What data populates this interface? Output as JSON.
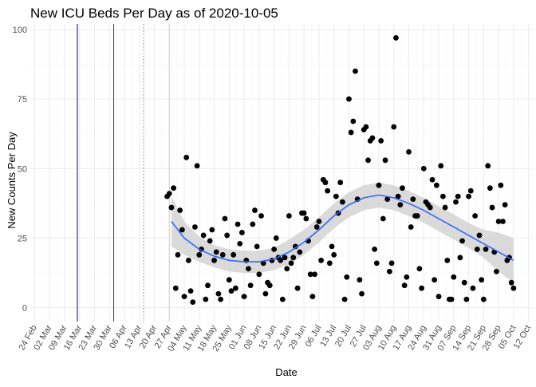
{
  "chart_data": {
    "type": "scatter",
    "title": "New ICU Beds Per Day as of 2020-10-05",
    "xlabel": "Date",
    "ylabel": "New Counts Per Day",
    "ylim": [
      -5,
      102
    ],
    "y_ticks": [
      0,
      25,
      50,
      75,
      100
    ],
    "x_range_days": [
      -2,
      233
    ],
    "x_ticks": [
      {
        "day": 0,
        "label": "24 Feb"
      },
      {
        "day": 7,
        "label": "02 Mar"
      },
      {
        "day": 14,
        "label": "09 Mar"
      },
      {
        "day": 21,
        "label": "16 Mar"
      },
      {
        "day": 28,
        "label": "23 Mar"
      },
      {
        "day": 35,
        "label": "30 Mar"
      },
      {
        "day": 42,
        "label": "06 Apr"
      },
      {
        "day": 49,
        "label": "13 Apr"
      },
      {
        "day": 56,
        "label": "20 Apr"
      },
      {
        "day": 63,
        "label": "27 Apr"
      },
      {
        "day": 70,
        "label": "04 May"
      },
      {
        "day": 77,
        "label": "11 May"
      },
      {
        "day": 84,
        "label": "18 May"
      },
      {
        "day": 91,
        "label": "25 May"
      },
      {
        "day": 98,
        "label": "01 Jun"
      },
      {
        "day": 105,
        "label": "08 Jun"
      },
      {
        "day": 112,
        "label": "15 Jun"
      },
      {
        "day": 119,
        "label": "22 Jun"
      },
      {
        "day": 126,
        "label": "29 Jun"
      },
      {
        "day": 133,
        "label": "06 Jul"
      },
      {
        "day": 140,
        "label": "13 Jul"
      },
      {
        "day": 147,
        "label": "20 Jul"
      },
      {
        "day": 154,
        "label": "27 Jul"
      },
      {
        "day": 161,
        "label": "03 Aug"
      },
      {
        "day": 168,
        "label": "10 Aug"
      },
      {
        "day": 175,
        "label": "17 Aug"
      },
      {
        "day": 182,
        "label": "24 Aug"
      },
      {
        "day": 189,
        "label": "31 Aug"
      },
      {
        "day": 196,
        "label": "07 Sep"
      },
      {
        "day": 203,
        "label": "14 Sep"
      },
      {
        "day": 210,
        "label": "21 Sep"
      },
      {
        "day": 217,
        "label": "28 Sep"
      },
      {
        "day": 224,
        "label": "05 Oct"
      },
      {
        "day": 231,
        "label": "12 Oct"
      }
    ],
    "reference_lines": [
      {
        "day": 20,
        "color": "#00008b",
        "style": "solid"
      },
      {
        "day": 37,
        "color": "#d00000",
        "style": "solid"
      },
      {
        "day": 51,
        "color": "#c05050",
        "style": "dotted"
      },
      {
        "day": 63,
        "color": "#f0c0c0",
        "style": "solid"
      }
    ],
    "points": [
      [
        62,
        40
      ],
      [
        63,
        41
      ],
      [
        64,
        36
      ],
      [
        65,
        43
      ],
      [
        66,
        7
      ],
      [
        67,
        19
      ],
      [
        68,
        35
      ],
      [
        69,
        28
      ],
      [
        70,
        4
      ],
      [
        71,
        54
      ],
      [
        72,
        17
      ],
      [
        73,
        6
      ],
      [
        74,
        2
      ],
      [
        75,
        29
      ],
      [
        76,
        51
      ],
      [
        77,
        19
      ],
      [
        78,
        21
      ],
      [
        79,
        26
      ],
      [
        80,
        3
      ],
      [
        81,
        8
      ],
      [
        82,
        24
      ],
      [
        83,
        28
      ],
      [
        84,
        17
      ],
      [
        85,
        20
      ],
      [
        86,
        5
      ],
      [
        87,
        3
      ],
      [
        88,
        19
      ],
      [
        89,
        32
      ],
      [
        90,
        26
      ],
      [
        91,
        10
      ],
      [
        92,
        6
      ],
      [
        93,
        19
      ],
      [
        94,
        7
      ],
      [
        95,
        30
      ],
      [
        96,
        23
      ],
      [
        97,
        27
      ],
      [
        98,
        4
      ],
      [
        99,
        17
      ],
      [
        100,
        14
      ],
      [
        101,
        8
      ],
      [
        102,
        30
      ],
      [
        103,
        35
      ],
      [
        104,
        22
      ],
      [
        105,
        12
      ],
      [
        106,
        33
      ],
      [
        107,
        16
      ],
      [
        108,
        5
      ],
      [
        109,
        9
      ],
      [
        110,
        8
      ],
      [
        111,
        17
      ],
      [
        112,
        21
      ],
      [
        113,
        25
      ],
      [
        114,
        18
      ],
      [
        115,
        17
      ],
      [
        116,
        3
      ],
      [
        117,
        18
      ],
      [
        118,
        14
      ],
      [
        119,
        33
      ],
      [
        120,
        16
      ],
      [
        121,
        18
      ],
      [
        122,
        22
      ],
      [
        123,
        7
      ],
      [
        124,
        20
      ],
      [
        125,
        34
      ],
      [
        126,
        34
      ],
      [
        127,
        32
      ],
      [
        128,
        24
      ],
      [
        129,
        12
      ],
      [
        130,
        4
      ],
      [
        131,
        12
      ],
      [
        132,
        29
      ],
      [
        133,
        31
      ],
      [
        134,
        17
      ],
      [
        135,
        46
      ],
      [
        136,
        45
      ],
      [
        137,
        42
      ],
      [
        138,
        16
      ],
      [
        139,
        22
      ],
      [
        140,
        19
      ],
      [
        141,
        40
      ],
      [
        142,
        34
      ],
      [
        143,
        45
      ],
      [
        144,
        38
      ],
      [
        145,
        3
      ],
      [
        146,
        11
      ],
      [
        147,
        75
      ],
      [
        148,
        63
      ],
      [
        149,
        67
      ],
      [
        150,
        85
      ],
      [
        151,
        39
      ],
      [
        152,
        10
      ],
      [
        153,
        5
      ],
      [
        154,
        64
      ],
      [
        155,
        65
      ],
      [
        156,
        53
      ],
      [
        157,
        60
      ],
      [
        158,
        61
      ],
      [
        159,
        21
      ],
      [
        160,
        16
      ],
      [
        161,
        44
      ],
      [
        162,
        60
      ],
      [
        163,
        32
      ],
      [
        164,
        53
      ],
      [
        165,
        39
      ],
      [
        166,
        13
      ],
      [
        167,
        16
      ],
      [
        168,
        65
      ],
      [
        169,
        97
      ],
      [
        170,
        40
      ],
      [
        171,
        37
      ],
      [
        172,
        43
      ],
      [
        173,
        8
      ],
      [
        174,
        11
      ],
      [
        175,
        56
      ],
      [
        176,
        29
      ],
      [
        177,
        39
      ],
      [
        178,
        33
      ],
      [
        179,
        33
      ],
      [
        180,
        14
      ],
      [
        181,
        7
      ],
      [
        182,
        50
      ],
      [
        183,
        38
      ],
      [
        184,
        37
      ],
      [
        185,
        36
      ],
      [
        186,
        46
      ],
      [
        187,
        10
      ],
      [
        188,
        44
      ],
      [
        189,
        4
      ],
      [
        190,
        51
      ],
      [
        191,
        40
      ],
      [
        192,
        36
      ],
      [
        193,
        17
      ],
      [
        194,
        3
      ],
      [
        195,
        3
      ],
      [
        196,
        11
      ],
      [
        197,
        38
      ],
      [
        198,
        40
      ],
      [
        199,
        18
      ],
      [
        200,
        24
      ],
      [
        201,
        9
      ],
      [
        202,
        3
      ],
      [
        203,
        40
      ],
      [
        204,
        42
      ],
      [
        205,
        7
      ],
      [
        206,
        33
      ],
      [
        207,
        21
      ],
      [
        208,
        26
      ],
      [
        209,
        10
      ],
      [
        210,
        3
      ],
      [
        211,
        21
      ],
      [
        212,
        51
      ],
      [
        213,
        43
      ],
      [
        214,
        36
      ],
      [
        215,
        20
      ],
      [
        216,
        13
      ],
      [
        217,
        31
      ],
      [
        218,
        44
      ],
      [
        219,
        31
      ],
      [
        220,
        37
      ],
      [
        221,
        17
      ],
      [
        222,
        18
      ],
      [
        223,
        9
      ],
      [
        224,
        7
      ]
    ],
    "smooth": [
      {
        "day": 64,
        "fit": 31,
        "lo": 22,
        "hi": 40
      },
      {
        "day": 70,
        "fit": 25,
        "lo": 19,
        "hi": 31
      },
      {
        "day": 77,
        "fit": 21,
        "lo": 16.5,
        "hi": 25.5
      },
      {
        "day": 84,
        "fit": 18.5,
        "lo": 14.5,
        "hi": 22.5
      },
      {
        "day": 91,
        "fit": 17,
        "lo": 13,
        "hi": 21
      },
      {
        "day": 98,
        "fit": 16.5,
        "lo": 12.5,
        "hi": 20.5
      },
      {
        "day": 105,
        "fit": 16.5,
        "lo": 12.5,
        "hi": 20.5
      },
      {
        "day": 112,
        "fit": 17.5,
        "lo": 13.5,
        "hi": 21.5
      },
      {
        "day": 119,
        "fit": 20,
        "lo": 15.5,
        "hi": 24.5
      },
      {
        "day": 126,
        "fit": 23.5,
        "lo": 19,
        "hi": 28
      },
      {
        "day": 133,
        "fit": 28,
        "lo": 23.5,
        "hi": 32.5
      },
      {
        "day": 140,
        "fit": 33,
        "lo": 28.5,
        "hi": 37.5
      },
      {
        "day": 147,
        "fit": 37,
        "lo": 32.5,
        "hi": 41.5
      },
      {
        "day": 154,
        "fit": 39.5,
        "lo": 35,
        "hi": 44
      },
      {
        "day": 161,
        "fit": 40.5,
        "lo": 36,
        "hi": 45
      },
      {
        "day": 168,
        "fit": 39.5,
        "lo": 35,
        "hi": 44
      },
      {
        "day": 175,
        "fit": 37.5,
        "lo": 33,
        "hi": 42
      },
      {
        "day": 182,
        "fit": 35,
        "lo": 30.5,
        "hi": 39.5
      },
      {
        "day": 189,
        "fit": 32,
        "lo": 27.5,
        "hi": 36.5
      },
      {
        "day": 196,
        "fit": 29,
        "lo": 24.5,
        "hi": 33.5
      },
      {
        "day": 203,
        "fit": 26,
        "lo": 21.5,
        "hi": 30.5
      },
      {
        "day": 210,
        "fit": 23,
        "lo": 18,
        "hi": 28
      },
      {
        "day": 217,
        "fit": 20,
        "lo": 13,
        "hi": 27
      },
      {
        "day": 224,
        "fit": 17,
        "lo": 9,
        "hi": 25
      }
    ],
    "grid": true,
    "colors": {
      "point": "#000000",
      "smooth_line": "#3366ff",
      "band": "#d3d3d3",
      "grid_major": "#ebebeb",
      "grid_minor": "#f5f5f5"
    }
  }
}
